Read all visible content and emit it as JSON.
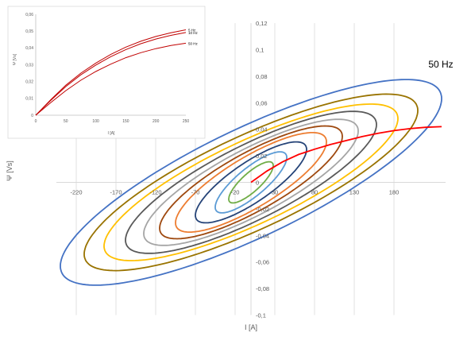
{
  "chart_data": [
    {
      "type": "line",
      "title": "",
      "annotation": "50 Hz",
      "xlabel": "I [A]",
      "ylabel": "Ψ [Vs]",
      "xlim": [
        -245,
        245
      ],
      "ylim": [
        -0.1,
        0.12
      ],
      "x_ticks": [
        -220,
        -170,
        -120,
        -70,
        -20,
        30,
        80,
        130,
        180
      ],
      "y_ticks": [
        -0.1,
        -0.08,
        -0.06,
        -0.04,
        -0.02,
        0,
        0.02,
        0.04,
        0.06,
        0.08,
        0.1,
        0.12
      ],
      "y_tick_labels": [
        "-0,1",
        "-0,08",
        "-0,06",
        "-0,04",
        "-0,02",
        "0",
        "0,02",
        "0,04",
        "0,06",
        "0,08",
        "0,1",
        "0,12"
      ],
      "grid": "vertical",
      "legend": "none",
      "series": [
        {
          "color": "#70AD47",
          "loops": [
            {
              "amp": 28,
              "psi": 0.0155
            }
          ]
        },
        {
          "color": "#5B9BD5",
          "loops": [
            {
              "amp": 45,
              "psi": 0.023
            }
          ]
        },
        {
          "color": "#264478",
          "loops": [
            {
              "amp": 70,
              "psi": 0.0305
            }
          ]
        },
        {
          "color": "#ED7D31",
          "loops": [
            {
              "amp": 95,
              "psi": 0.0375
            }
          ]
        },
        {
          "color": "#9E480E",
          "loops": [
            {
              "amp": 115,
              "psi": 0.0425
            }
          ]
        },
        {
          "color": "#A5A5A5",
          "loops": [
            {
              "amp": 135,
              "psi": 0.0475
            }
          ]
        },
        {
          "color": "#595959",
          "loops": [
            {
              "amp": 158,
              "psi": 0.0535
            }
          ]
        },
        {
          "color": "#FFC000",
          "loops": [
            {
              "amp": 185,
              "psi": 0.059
            }
          ]
        },
        {
          "color": "#997300",
          "loops": [
            {
              "amp": 210,
              "psi": 0.0665
            }
          ]
        },
        {
          "color": "#4472C4",
          "loops": [
            {
              "amp": 240,
              "psi": 0.0775
            }
          ]
        }
      ],
      "magnetization_curve": {
        "color": "#FF0000",
        "x": [
          0,
          20,
          40,
          60,
          80,
          100,
          120,
          140,
          160,
          180,
          200,
          220,
          240
        ],
        "y": [
          0,
          0.0085,
          0.0155,
          0.021,
          0.025,
          0.0285,
          0.0315,
          0.0345,
          0.037,
          0.039,
          0.0405,
          0.0415,
          0.042
        ]
      }
    },
    {
      "type": "line",
      "title": "",
      "xlabel": "I [A]",
      "ylabel": "Ψ [Vs]",
      "xlim": [
        0,
        250
      ],
      "ylim": [
        0,
        0.06
      ],
      "x_ticks": [
        0,
        50,
        100,
        150,
        200,
        250
      ],
      "y_ticks": [
        0,
        0.01,
        0.02,
        0.03,
        0.04,
        0.05,
        0.06
      ],
      "y_tick_labels": [
        "0",
        "0,01",
        "0,02",
        "0,03",
        "0,04",
        "0,05",
        "0,06"
      ],
      "grid": "none",
      "legend": "none",
      "series": [
        {
          "name": "5 Hz",
          "color": "#C00000",
          "x": [
            0,
            25,
            50,
            75,
            100,
            125,
            150,
            175,
            200,
            225,
            250
          ],
          "y": [
            0,
            0.0092,
            0.0178,
            0.025,
            0.031,
            0.0362,
            0.0405,
            0.044,
            0.0468,
            0.049,
            0.0508
          ]
        },
        {
          "name": "10 Hz",
          "color": "#C00000",
          "x": [
            0,
            25,
            50,
            75,
            100,
            125,
            150,
            175,
            200,
            225,
            250
          ],
          "y": [
            0,
            0.0088,
            0.017,
            0.024,
            0.0298,
            0.0348,
            0.039,
            0.0425,
            0.0453,
            0.0475,
            0.0492
          ]
        },
        {
          "name": "50 Hz",
          "color": "#C00000",
          "x": [
            0,
            25,
            50,
            75,
            100,
            125,
            150,
            175,
            200,
            225,
            250
          ],
          "y": [
            0,
            0.0075,
            0.0146,
            0.0208,
            0.026,
            0.0304,
            0.0342,
            0.0372,
            0.0396,
            0.0415,
            0.0428
          ]
        }
      ]
    }
  ]
}
